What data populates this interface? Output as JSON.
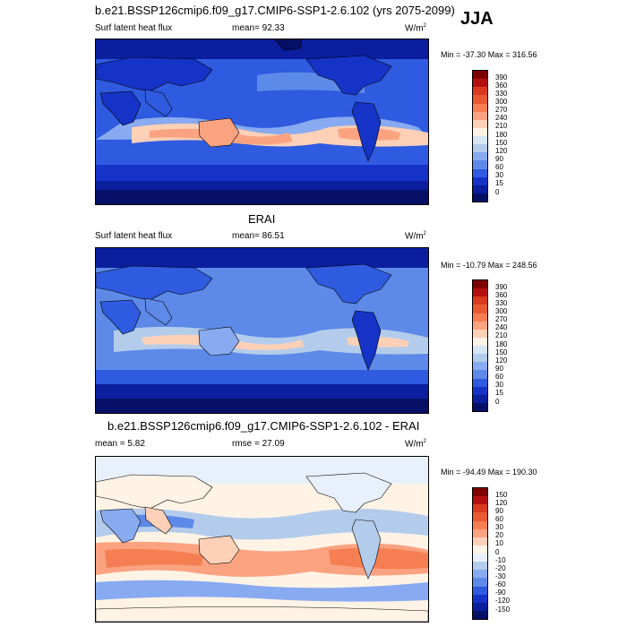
{
  "season": "JJA",
  "units_prefix": "W/m",
  "units_power": "2",
  "panels": [
    {
      "title": "b.e21.BSSP126cmip6.f09_g17.CMIP6-SSP1-2.6.102 (yrs 2075-2099)",
      "left_label": "Surf latent heat flux",
      "center_label": "mean=  92.33",
      "range_label": "Min = -37.30 Max = 316.56",
      "colorbar_labels": [
        "390",
        "360",
        "330",
        "300",
        "270",
        "240",
        "210",
        "180",
        "150",
        "120",
        "90",
        "60",
        "30",
        "15",
        "0"
      ],
      "colorbar_colors": [
        "#7f0000",
        "#b40f0f",
        "#d73a1f",
        "#ea5a32",
        "#f57f52",
        "#fba381",
        "#fdd0b7",
        "#fff3e5",
        "#d6e6f5",
        "#b4ccec",
        "#88aaf0",
        "#5d8ae8",
        "#2f5be0",
        "#1633c8",
        "#0a1e9e",
        "#061066"
      ]
    },
    {
      "title": "ERAI",
      "left_label": "Surf latent heat flux",
      "center_label": "mean=  86.51",
      "range_label": "Min = -10.79 Max = 248.56",
      "colorbar_labels": [
        "390",
        "360",
        "330",
        "300",
        "270",
        "240",
        "210",
        "180",
        "150",
        "120",
        "90",
        "60",
        "30",
        "15",
        "0"
      ],
      "colorbar_colors": [
        "#7f0000",
        "#b40f0f",
        "#d73a1f",
        "#ea5a32",
        "#f57f52",
        "#fba381",
        "#fdd0b7",
        "#fff3e5",
        "#d6e6f5",
        "#b4ccec",
        "#88aaf0",
        "#5d8ae8",
        "#2f5be0",
        "#1633c8",
        "#0a1e9e",
        "#061066"
      ]
    },
    {
      "title": "b.e21.BSSP126cmip6.f09_g17.CMIP6-SSP1-2.6.102 - ERAI",
      "left_label": "mean =  5.82",
      "center_label": "rmse =  27.09",
      "range_label": "Min = -94.49 Max = 190.30",
      "colorbar_labels": [
        "150",
        "120",
        "90",
        "60",
        "30",
        "20",
        "10",
        "0",
        "-10",
        "-20",
        "-30",
        "-60",
        "-90",
        "-120",
        "-150"
      ],
      "colorbar_colors": [
        "#7f0000",
        "#b40f0f",
        "#d73a1f",
        "#ea5a32",
        "#f57f52",
        "#fba381",
        "#fdd0b7",
        "#fff3e5",
        "#e8f1fb",
        "#b4ccec",
        "#88aaf0",
        "#5d8ae8",
        "#2f5be0",
        "#1633c8",
        "#0a1e9e",
        "#061066"
      ]
    }
  ]
}
